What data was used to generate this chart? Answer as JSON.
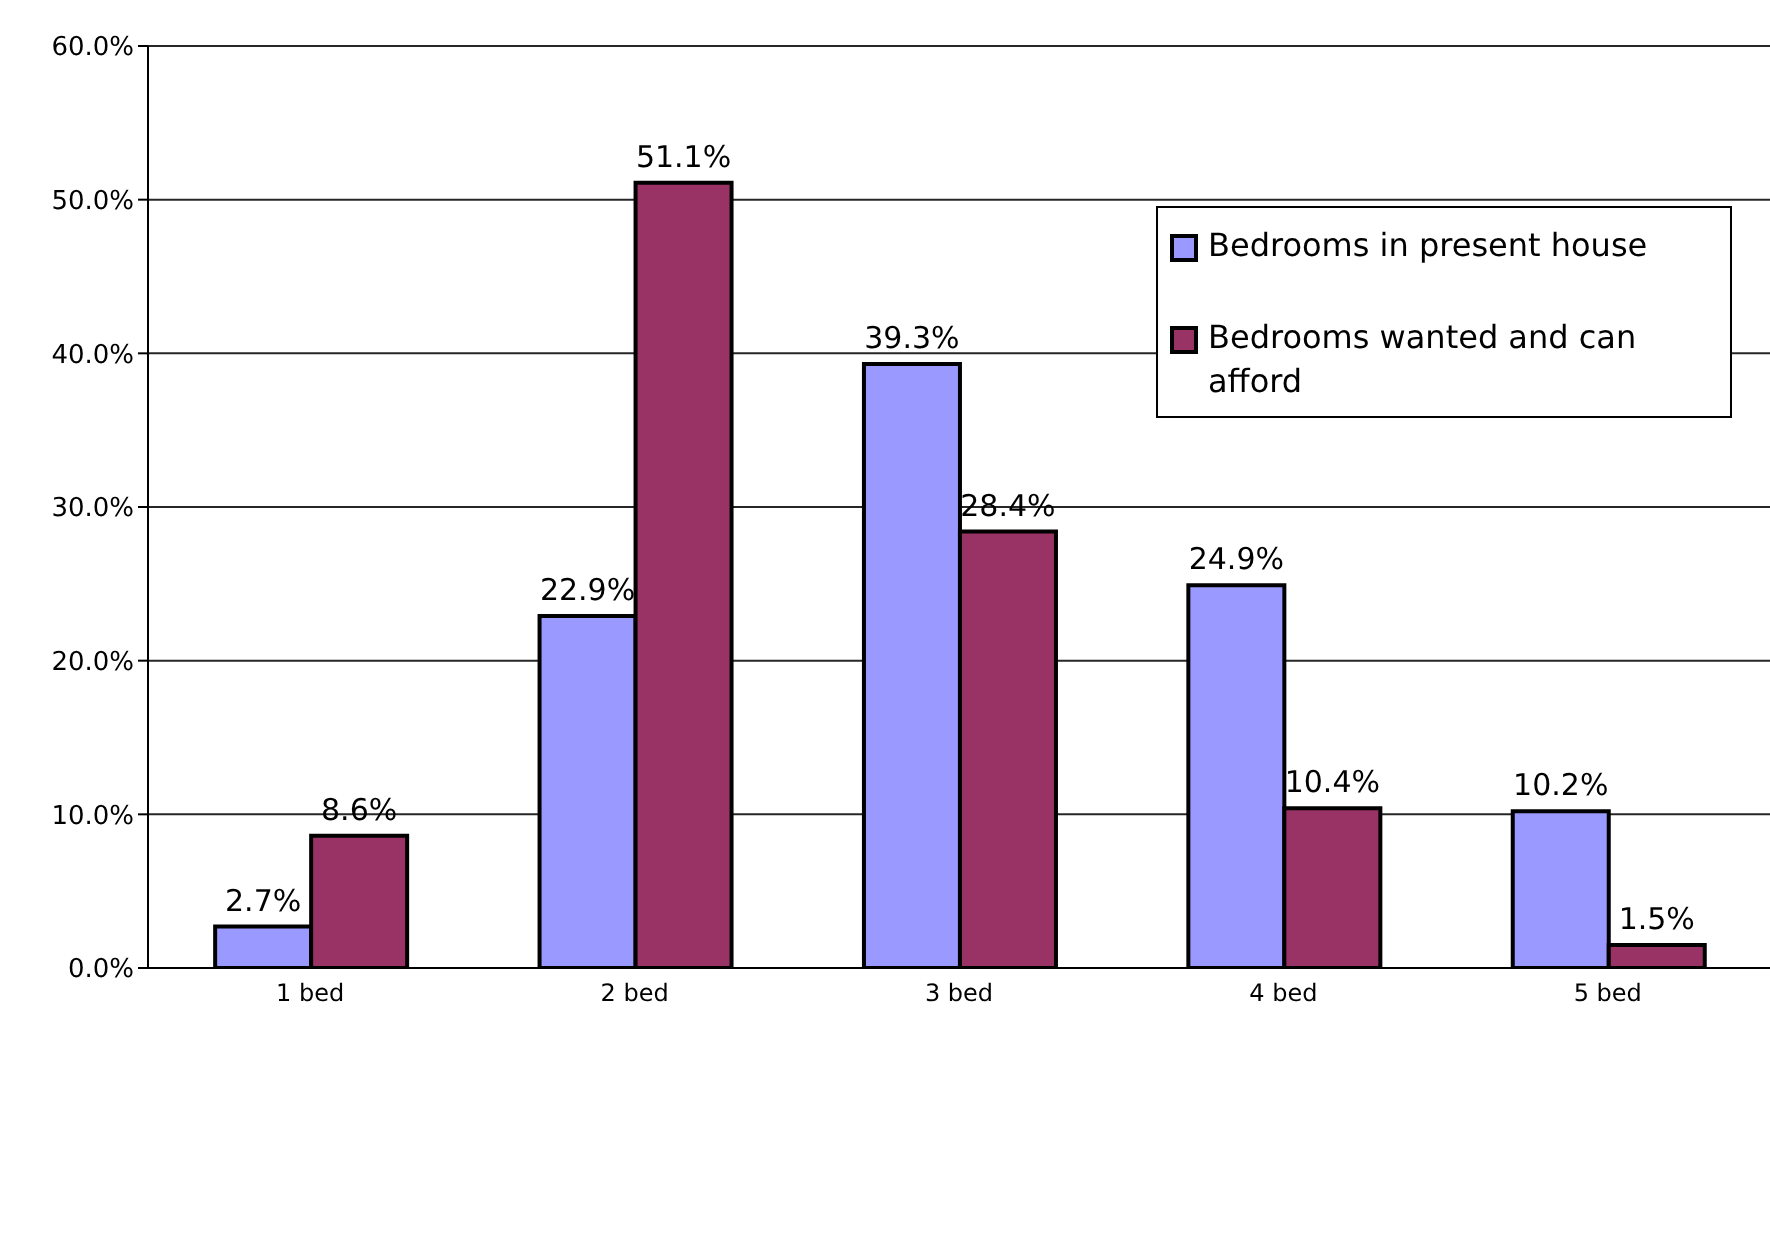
{
  "chart_data": {
    "type": "bar",
    "categories": [
      "1 bed",
      "2 bed",
      "3 bed",
      "4 bed",
      "5 bed"
    ],
    "series": [
      {
        "name": "Bedrooms in present house",
        "color": "#9999ff",
        "values": [
          2.7,
          22.9,
          39.3,
          24.9,
          10.2
        ],
        "value_labels": [
          "2.7%",
          "22.9%",
          "39.3%",
          "24.9%",
          "10.2%"
        ]
      },
      {
        "name": "Bedrooms wanted and can afford",
        "color": "#993366",
        "values": [
          8.6,
          51.1,
          28.4,
          10.4,
          1.5
        ],
        "value_labels": [
          "8.6%",
          "51.1%",
          "28.4%",
          "10.4%",
          "1.5%"
        ]
      }
    ],
    "ylim": [
      0,
      60
    ],
    "yticks": [
      {
        "value": 0,
        "label": "0.0%"
      },
      {
        "value": 10,
        "label": "10.0%"
      },
      {
        "value": 20,
        "label": "20.0%"
      },
      {
        "value": 30,
        "label": "30.0%"
      },
      {
        "value": 40,
        "label": "40.0%"
      },
      {
        "value": 50,
        "label": "50.0%"
      },
      {
        "value": 60,
        "label": "60.0%"
      }
    ],
    "grid": "y",
    "legend": "top right"
  }
}
